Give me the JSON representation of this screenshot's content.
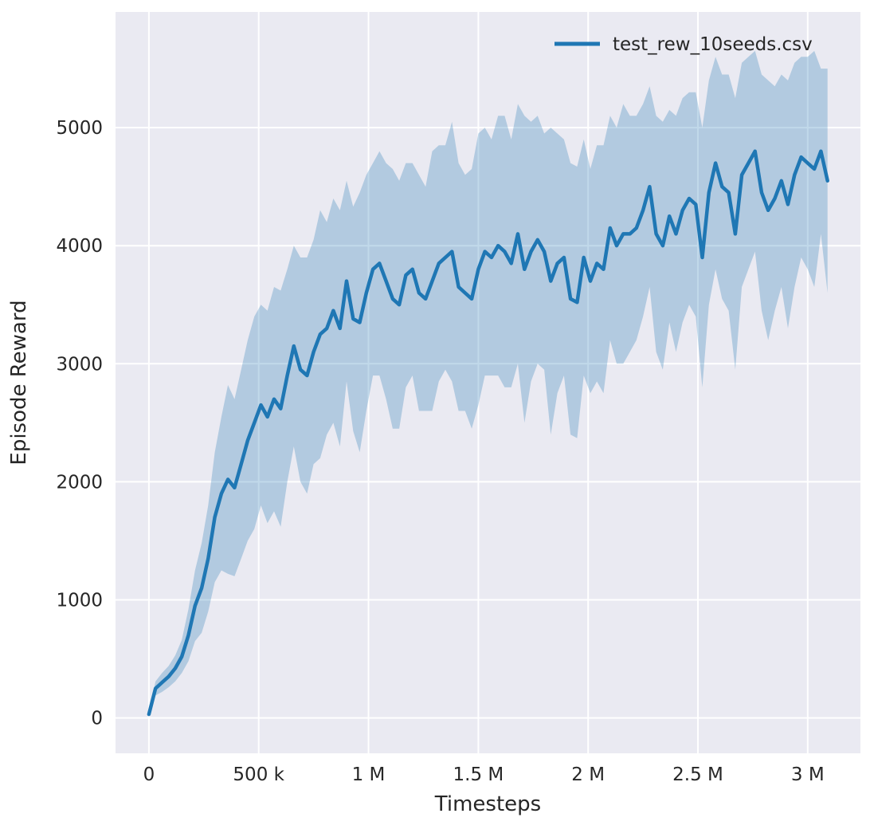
{
  "figure": {
    "background": "#ffffff",
    "plot_background": "#eaeaf2",
    "grid_color": "#ffffff",
    "text_color": "#262626"
  },
  "chart_data": {
    "type": "line",
    "title": "",
    "xlabel": "Timesteps",
    "ylabel": "Episode Reward",
    "grid": true,
    "legend_position": "upper right",
    "xlim": [
      -152000,
      3240000
    ],
    "ylim": [
      -300,
      5980
    ],
    "xticks": {
      "values": [
        0,
        500000,
        1000000,
        1500000,
        2000000,
        2500000,
        3000000
      ],
      "labels": [
        "0",
        "500 k",
        "1 M",
        "1.5 M",
        "2 M",
        "2.5 M",
        "3 M"
      ]
    },
    "yticks": {
      "values": [
        0,
        1000,
        2000,
        3000,
        4000,
        5000
      ],
      "labels": [
        "0",
        "1000",
        "2000",
        "3000",
        "4000",
        "5000"
      ]
    },
    "series": [
      {
        "name": "test_rew_10seeds.csv",
        "color": "#1f77b4",
        "band_alpha": 0.28,
        "line_width": 4.5,
        "x": [
          0,
          30000,
          60000,
          90000,
          120000,
          150000,
          180000,
          210000,
          240000,
          270000,
          300000,
          330000,
          360000,
          390000,
          420000,
          450000,
          480000,
          510000,
          540000,
          570000,
          600000,
          630000,
          660000,
          690000,
          720000,
          750000,
          780000,
          810000,
          840000,
          870000,
          900000,
          930000,
          960000,
          990000,
          1020000,
          1050000,
          1080000,
          1110000,
          1140000,
          1170000,
          1200000,
          1230000,
          1260000,
          1290000,
          1320000,
          1350000,
          1380000,
          1410000,
          1440000,
          1470000,
          1500000,
          1530000,
          1560000,
          1590000,
          1620000,
          1650000,
          1680000,
          1710000,
          1740000,
          1770000,
          1800000,
          1830000,
          1860000,
          1890000,
          1920000,
          1950000,
          1980000,
          2010000,
          2040000,
          2070000,
          2100000,
          2130000,
          2160000,
          2190000,
          2220000,
          2250000,
          2280000,
          2310000,
          2340000,
          2370000,
          2400000,
          2430000,
          2460000,
          2490000,
          2520000,
          2550000,
          2580000,
          2610000,
          2640000,
          2670000,
          2700000,
          2730000,
          2760000,
          2790000,
          2820000,
          2850000,
          2880000,
          2910000,
          2940000,
          2970000,
          3000000,
          3030000,
          3060000,
          3090000
        ],
        "mean": [
          30,
          250,
          300,
          350,
          420,
          520,
          700,
          950,
          1100,
          1350,
          1700,
          1900,
          2020,
          1950,
          2150,
          2350,
          2500,
          2650,
          2550,
          2700,
          2620,
          2900,
          3150,
          2950,
          2900,
          3100,
          3250,
          3300,
          3450,
          3300,
          3700,
          3380,
          3350,
          3600,
          3800,
          3850,
          3700,
          3550,
          3500,
          3750,
          3800,
          3600,
          3550,
          3700,
          3850,
          3900,
          3950,
          3650,
          3600,
          3550,
          3800,
          3950,
          3900,
          4000,
          3950,
          3850,
          4100,
          3800,
          3950,
          4050,
          3950,
          3700,
          3850,
          3900,
          3550,
          3520,
          3900,
          3700,
          3850,
          3800,
          4150,
          4000,
          4100,
          4100,
          4150,
          4300,
          4500,
          4100,
          4000,
          4250,
          4100,
          4300,
          4400,
          4350,
          3900,
          4450,
          4700,
          4500,
          4450,
          4100,
          4600,
          4700,
          4800,
          4450,
          4300,
          4400,
          4550,
          4350,
          4600,
          4750,
          4700,
          4650,
          4800,
          4550
        ],
        "std": [
          20,
          60,
          80,
          90,
          110,
          140,
          220,
          300,
          380,
          450,
          550,
          650,
          800,
          750,
          800,
          850,
          900,
          850,
          900,
          950,
          1000,
          900,
          850,
          950,
          1000,
          950,
          1050,
          900,
          950,
          1000,
          850,
          950,
          1100,
          1000,
          900,
          950,
          1000,
          1100,
          1050,
          950,
          900,
          1000,
          950,
          1100,
          1000,
          950,
          1100,
          1050,
          1000,
          1100,
          1150,
          1050,
          1000,
          1100,
          1150,
          1050,
          1100,
          1300,
          1100,
          1050,
          1000,
          1300,
          1100,
          1000,
          1150,
          1150,
          1000,
          950,
          1000,
          1050,
          950,
          1000,
          1100,
          1000,
          950,
          900,
          850,
          1000,
          1050,
          900,
          1000,
          950,
          900,
          950,
          1100,
          950,
          900,
          950,
          1000,
          1150,
          950,
          900,
          850,
          1000,
          1100,
          950,
          900,
          1050,
          950,
          850,
          900,
          1000,
          700,
          950
        ]
      }
    ]
  }
}
